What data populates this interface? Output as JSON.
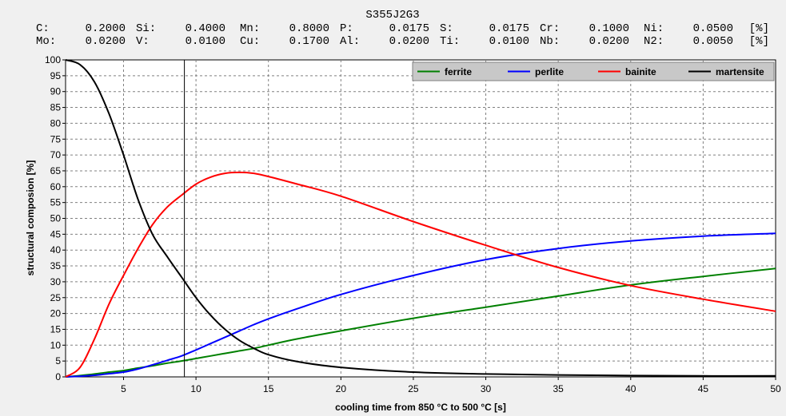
{
  "header": {
    "title": "S355J2G3",
    "composition_rows": [
      [
        {
          "el": "C:",
          "val": "0.2000"
        },
        {
          "el": "Si:",
          "val": "0.4000"
        },
        {
          "el": "Mn:",
          "val": "0.8000"
        },
        {
          "el": "P:",
          "val": "0.0175"
        },
        {
          "el": "S:",
          "val": "0.0175"
        },
        {
          "el": "Cr:",
          "val": "0.1000"
        },
        {
          "el": "Ni:",
          "val": "0.0500"
        }
      ],
      [
        {
          "el": "Mo:",
          "val": "0.0200"
        },
        {
          "el": "V:",
          "val": "0.0100"
        },
        {
          "el": "Cu:",
          "val": "0.1700"
        },
        {
          "el": "Al:",
          "val": "0.0200"
        },
        {
          "el": "Ti:",
          "val": "0.0100"
        },
        {
          "el": "Nb:",
          "val": "0.0200"
        },
        {
          "el": "N2:",
          "val": "0.0050"
        }
      ]
    ],
    "unit": "[%]"
  },
  "colors": {
    "background": "#f0f0f0",
    "plot_background": "#ffffff",
    "grid": "#808080",
    "legend_background": "#c8c8c8",
    "marker_line": "#000000"
  },
  "chart_data": {
    "type": "line",
    "xlabel": "cooling time from 850 °C to 500 °C [s]",
    "ylabel": "structural composion [%]",
    "xlim": [
      1,
      50
    ],
    "ylim": [
      0,
      100
    ],
    "x_ticks": [
      5,
      10,
      15,
      20,
      25,
      30,
      35,
      40,
      45,
      50
    ],
    "y_ticks": [
      0,
      5,
      10,
      15,
      20,
      25,
      30,
      35,
      40,
      45,
      50,
      55,
      60,
      65,
      70,
      75,
      80,
      85,
      90,
      95,
      100
    ],
    "grid": true,
    "legend_position": "top-right",
    "vertical_marker_x": 9.2,
    "x": [
      1,
      2,
      3,
      4,
      5,
      6,
      7,
      8,
      9,
      10,
      11,
      12,
      13,
      14,
      15,
      17,
      20,
      25,
      30,
      35,
      40,
      45,
      50
    ],
    "series": [
      {
        "name": "ferrite",
        "color": "#008000",
        "values": [
          0,
          0.4,
          0.9,
          1.5,
          2,
          2.8,
          3.5,
          4.3,
          5,
          5.8,
          6.6,
          7.4,
          8.2,
          9,
          10,
          12,
          14.5,
          18.5,
          22,
          25.5,
          29,
          31.7,
          34.2
        ]
      },
      {
        "name": "perlite",
        "color": "#0000ff",
        "values": [
          0,
          0.2,
          0.5,
          1,
          1.5,
          2.5,
          3.8,
          5.2,
          6.6,
          8.5,
          10.5,
          12.5,
          14.5,
          16.5,
          18.3,
          21.5,
          26,
          32,
          37,
          40.5,
          42.9,
          44.4,
          45.3
        ]
      },
      {
        "name": "bainite",
        "color": "#ff0000",
        "values": [
          0,
          3,
          12,
          23,
          32,
          40.5,
          48,
          53.5,
          57.3,
          60.8,
          63,
          64.2,
          64.5,
          64.2,
          63.2,
          60.8,
          57,
          49,
          41.5,
          34.5,
          28.8,
          24.5,
          20.7
        ]
      },
      {
        "name": "martensite",
        "color": "#000000",
        "values": [
          100,
          98.5,
          93,
          83,
          70,
          56,
          45,
          38,
          31.5,
          25,
          19.5,
          15,
          11.5,
          9,
          7,
          4.8,
          3,
          1.5,
          0.9,
          0.6,
          0.4,
          0.3,
          0.3
        ]
      }
    ]
  }
}
